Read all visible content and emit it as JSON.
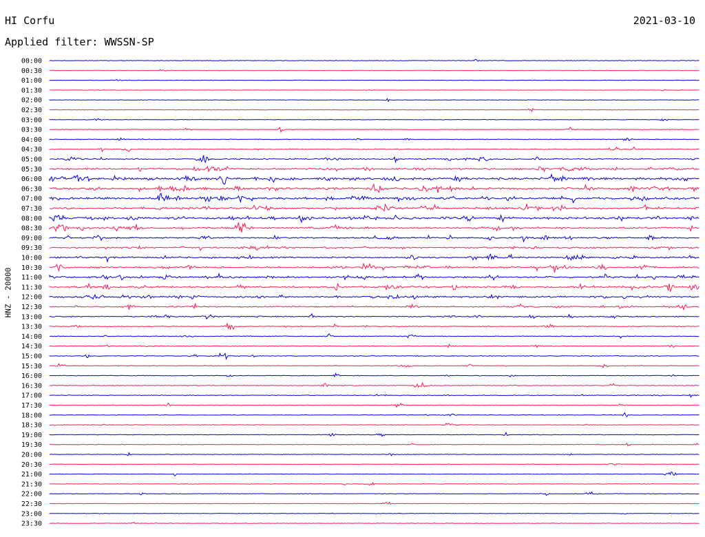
{
  "header": {
    "station": "HI Corfu",
    "date": "2021-03-10",
    "filter": "Applied filter: WWSSN-SP"
  },
  "chart_data": {
    "type": "line",
    "ylabel": "HNZ - 20000",
    "colors": [
      "#0000e0",
      "#ff1a4d"
    ],
    "rows": [
      {
        "label": "00:00",
        "activity": 0.03
      },
      {
        "label": "00:30",
        "activity": 0.02
      },
      {
        "label": "01:00",
        "activity": 0.02
      },
      {
        "label": "01:30",
        "activity": 0.02
      },
      {
        "label": "02:00",
        "activity": 0.02
      },
      {
        "label": "02:30",
        "activity": 0.02
      },
      {
        "label": "03:00",
        "activity": 0.05
      },
      {
        "label": "03:30",
        "activity": 0.08
      },
      {
        "label": "04:00",
        "activity": 0.12
      },
      {
        "label": "04:30",
        "activity": 0.18
      },
      {
        "label": "05:00",
        "activity": 0.35
      },
      {
        "label": "05:30",
        "activity": 0.55
      },
      {
        "label": "06:00",
        "activity": 0.75
      },
      {
        "label": "06:30",
        "activity": 0.7
      },
      {
        "label": "07:00",
        "activity": 0.7
      },
      {
        "label": "07:30",
        "activity": 0.65
      },
      {
        "label": "08:00",
        "activity": 0.7
      },
      {
        "label": "08:30",
        "activity": 0.55
      },
      {
        "label": "09:00",
        "activity": 0.45
      },
      {
        "label": "09:30",
        "activity": 0.42
      },
      {
        "label": "10:00",
        "activity": 0.45
      },
      {
        "label": "10:30",
        "activity": 0.5
      },
      {
        "label": "11:00",
        "activity": 0.55
      },
      {
        "label": "11:30",
        "activity": 0.55
      },
      {
        "label": "12:00",
        "activity": 0.5
      },
      {
        "label": "12:30",
        "activity": 0.35
      },
      {
        "label": "13:00",
        "activity": 0.3
      },
      {
        "label": "13:30",
        "activity": 0.2
      },
      {
        "label": "14:00",
        "activity": 0.15
      },
      {
        "label": "14:30",
        "activity": 0.15
      },
      {
        "label": "15:00",
        "activity": 0.15
      },
      {
        "label": "15:30",
        "activity": 0.12
      },
      {
        "label": "16:00",
        "activity": 0.12
      },
      {
        "label": "16:30",
        "activity": 0.12
      },
      {
        "label": "17:00",
        "activity": 0.12
      },
      {
        "label": "17:30",
        "activity": 0.08
      },
      {
        "label": "18:00",
        "activity": 0.08
      },
      {
        "label": "18:30",
        "activity": 0.1
      },
      {
        "label": "19:00",
        "activity": 0.08
      },
      {
        "label": "19:30",
        "activity": 0.1
      },
      {
        "label": "20:00",
        "activity": 0.08
      },
      {
        "label": "20:30",
        "activity": 0.04
      },
      {
        "label": "21:00",
        "activity": 0.04
      },
      {
        "label": "21:30",
        "activity": 0.06
      },
      {
        "label": "22:00",
        "activity": 0.08
      },
      {
        "label": "22:30",
        "activity": 0.06
      },
      {
        "label": "23:00",
        "activity": 0.04
      },
      {
        "label": "23:30",
        "activity": 0.03
      }
    ]
  }
}
